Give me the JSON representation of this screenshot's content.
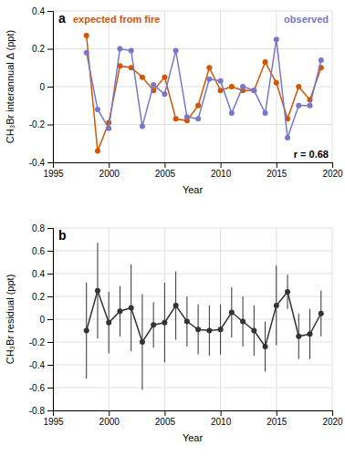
{
  "chart_data": [
    {
      "type": "line",
      "title": "a",
      "x": [
        1998,
        1999,
        2000,
        2001,
        2002,
        2003,
        2004,
        2005,
        2006,
        2007,
        2008,
        2009,
        2010,
        2011,
        2012,
        2013,
        2014,
        2015,
        2016,
        2017,
        2018,
        2019
      ],
      "series": [
        {
          "name": "expected from fire",
          "color": "#d45500",
          "marker": "circle",
          "values": [
            0.27,
            -0.34,
            -0.19,
            0.11,
            0.1,
            0.05,
            -0.02,
            0.05,
            -0.17,
            -0.18,
            -0.1,
            0.1,
            -0.02,
            0.0,
            -0.02,
            -0.02,
            0.13,
            0.02,
            -0.17,
            0.0,
            -0.07,
            0.1
          ]
        },
        {
          "name": "observed",
          "color": "#7777cc",
          "marker": "circle",
          "values": [
            0.18,
            -0.12,
            -0.22,
            0.2,
            0.19,
            -0.21,
            0.01,
            -0.04,
            0.19,
            -0.16,
            -0.17,
            0.04,
            0.03,
            -0.14,
            0.0,
            -0.02,
            -0.14,
            0.25,
            -0.27,
            -0.1,
            -0.1,
            0.14
          ]
        }
      ],
      "xlabel": "Year",
      "ylabel": "CH₃Br interannual Δ (ppt)",
      "xlim": [
        1995,
        2020
      ],
      "ylim": [
        -0.4,
        0.4
      ],
      "xticks": [
        1995,
        2000,
        2005,
        2010,
        2015,
        2020
      ],
      "yticks": [
        -0.4,
        -0.2,
        0,
        0.2,
        0.4
      ],
      "grid": true,
      "annotation": "r = 0.68"
    },
    {
      "type": "line",
      "title": "b",
      "x": [
        1998,
        1999,
        2000,
        2001,
        2002,
        2003,
        2004,
        2005,
        2006,
        2007,
        2008,
        2009,
        2010,
        2011,
        2012,
        2013,
        2014,
        2015,
        2016,
        2017,
        2018,
        2019
      ],
      "series": [
        {
          "color": "#333333",
          "marker": "circle",
          "values": [
            -0.1,
            0.25,
            -0.03,
            0.07,
            0.1,
            -0.2,
            -0.05,
            -0.03,
            0.12,
            -0.02,
            -0.09,
            -0.1,
            -0.09,
            0.06,
            -0.02,
            -0.1,
            -0.24,
            0.12,
            0.24,
            -0.15,
            -0.13,
            0.05
          ],
          "errors": [
            0.42,
            0.42,
            0.27,
            0.22,
            0.38,
            0.42,
            0.2,
            0.35,
            0.3,
            0.22,
            0.22,
            0.22,
            0.22,
            0.22,
            0.22,
            0.22,
            0.22,
            0.35,
            0.15,
            0.2,
            0.22,
            0.2
          ]
        }
      ],
      "xlabel": "Year",
      "ylabel": "CH₃Br residual (ppt)",
      "xlim": [
        1995,
        2020
      ],
      "ylim": [
        -0.8,
        0.8
      ],
      "xticks": [
        1995,
        2000,
        2005,
        2010,
        2015,
        2020
      ],
      "yticks": [
        -0.8,
        -0.6,
        -0.4,
        -0.2,
        0,
        0.2,
        0.4,
        0.6,
        0.8
      ],
      "grid": true
    }
  ]
}
